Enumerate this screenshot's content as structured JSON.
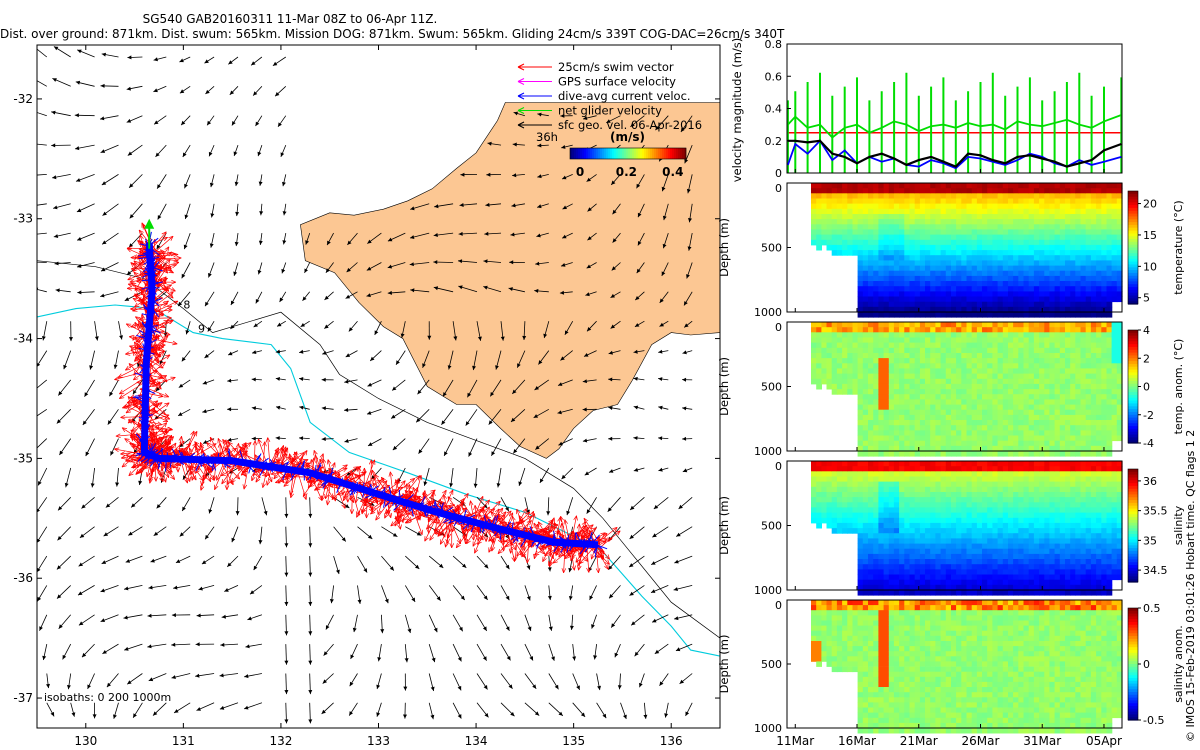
{
  "header": {
    "line1": "SG540 GAB20160311 11-Mar 08Z to 06-Apr 11Z.",
    "line2": "Dist. over ground: 871km. Dist. swum: 565km. Mission DOG: 871km. Swum: 565km. Gliding 24cm/s 339T COG-DAC=26cm/s 340T"
  },
  "credit": "© IMOS 15-Feb-2019 03:01:26 Hobart time. QC flags 1 2",
  "colors": {
    "land": "#FCC793",
    "swim": "#FF0000",
    "gps": "#FF00FF",
    "dac": "#0000FF",
    "net": "#00DD00",
    "sfc": "#000000",
    "iso200": "#00CCDD",
    "iso1000": "#000000"
  },
  "chart_data": [
    {
      "type": "map",
      "name": "glider-track-map",
      "xlim": [
        129.5,
        136.5
      ],
      "ylim": [
        -37.25,
        -31.55
      ],
      "x_ticks": [
        "130",
        "131",
        "132",
        "133",
        "134",
        "135",
        "136"
      ],
      "y_ticks": [
        "-32",
        "-33",
        "-34",
        "-35",
        "-36",
        "-37"
      ],
      "legend": {
        "items": [
          {
            "label": "25cm/s swim vector",
            "color": "#FF0000"
          },
          {
            "label": "GPS surface velocity",
            "color": "#FF00FF"
          },
          {
            "label": "dive-avg current veloc.",
            "color": "#0000FF"
          },
          {
            "label": "net glider velocity",
            "color": "#00DD00"
          },
          {
            "label": "sfc geo. vel. 06-Apr-2016",
            "color": "#000000"
          }
        ],
        "arrow_scale_label": "36h",
        "colorbar_unit": "(m/s)",
        "colorbar_ticks": [
          "0",
          "0.2",
          "0.4"
        ],
        "colorbar_range": [
          0,
          0.5
        ]
      },
      "isobath_text": "isobaths: 0   200 1000m",
      "contour_labels": [
        "8",
        "9"
      ],
      "track_waypoints": [
        [
          130.65,
          -33.2
        ],
        [
          130.68,
          -33.6
        ],
        [
          130.62,
          -34.2
        ],
        [
          130.6,
          -34.95
        ],
        [
          130.75,
          -35.0
        ],
        [
          131.5,
          -35.02
        ],
        [
          132.3,
          -35.12
        ],
        [
          133.0,
          -35.3
        ],
        [
          133.6,
          -35.45
        ],
        [
          134.2,
          -35.58
        ],
        [
          134.8,
          -35.7
        ],
        [
          135.25,
          -35.72
        ]
      ]
    },
    {
      "type": "line",
      "name": "velocity-magnitude",
      "ylabel": "velocity magnitude (m/s)",
      "ylim": [
        0,
        0.8
      ],
      "y_ticks": [
        "0",
        "0.2",
        "0.4",
        "0.6",
        "0.8"
      ],
      "x_ticks": [
        "11Mar",
        "16Mar",
        "21Mar",
        "26Mar",
        "31Mar",
        "05Apr"
      ],
      "xlim_days": [
        10.33,
        37.46
      ],
      "reference_level": 0.25,
      "series": [
        {
          "color": "#00DD00",
          "x": [
            10.4,
            11,
            12,
            13,
            14,
            15,
            16,
            17,
            18,
            19,
            20,
            21,
            22,
            23,
            24,
            25,
            26,
            27,
            28,
            29,
            30,
            31,
            32,
            33,
            34,
            35,
            36,
            37.4
          ],
          "values": [
            0.3,
            0.35,
            0.28,
            0.3,
            0.22,
            0.28,
            0.3,
            0.25,
            0.28,
            0.32,
            0.3,
            0.26,
            0.29,
            0.3,
            0.28,
            0.31,
            0.29,
            0.3,
            0.27,
            0.32,
            0.3,
            0.29,
            0.31,
            0.33,
            0.3,
            0.28,
            0.32,
            0.36
          ]
        },
        {
          "color": "#0000FF",
          "x": [
            10.4,
            11,
            12,
            13,
            14,
            15,
            16,
            17,
            18,
            19,
            20,
            21,
            22,
            23,
            24,
            25,
            26,
            27,
            28,
            29,
            30,
            31,
            32,
            33,
            34,
            35,
            36,
            37.4
          ],
          "values": [
            0.05,
            0.18,
            0.12,
            0.2,
            0.08,
            0.14,
            0.06,
            0.1,
            0.07,
            0.09,
            0.05,
            0.04,
            0.08,
            0.06,
            0.03,
            0.1,
            0.09,
            0.07,
            0.05,
            0.08,
            0.12,
            0.1,
            0.06,
            0.04,
            0.08,
            0.05,
            0.07,
            0.1
          ]
        },
        {
          "color": "#000000",
          "x": [
            10.4,
            11,
            12,
            13,
            14,
            15,
            16,
            17,
            18,
            19,
            20,
            21,
            22,
            23,
            24,
            25,
            26,
            27,
            28,
            29,
            30,
            31,
            32,
            33,
            34,
            35,
            36,
            37.4
          ],
          "values": [
            0.2,
            0.2,
            0.19,
            0.2,
            0.12,
            0.1,
            0.06,
            0.1,
            0.12,
            0.09,
            0.05,
            0.08,
            0.1,
            0.07,
            0.04,
            0.12,
            0.11,
            0.08,
            0.06,
            0.1,
            0.11,
            0.09,
            0.07,
            0.04,
            0.06,
            0.08,
            0.14,
            0.18
          ]
        }
      ]
    },
    {
      "type": "heatmap",
      "name": "temperature-section",
      "ylabel": "Depth (m)",
      "colorbar_label": "temperature (°C)",
      "y_ticks": [
        "0",
        "500",
        "1000"
      ],
      "colorbar_ticks": [
        "20",
        "15",
        "10",
        "5"
      ],
      "clim": [
        4,
        22
      ],
      "surface_value": 21.5,
      "deep_value": 5.5
    },
    {
      "type": "heatmap",
      "name": "temp-anomaly-section",
      "ylabel": "Depth (m)",
      "colorbar_label": "temp. anom. (°C)",
      "y_ticks": [
        "0",
        "500",
        "1000"
      ],
      "colorbar_ticks": [
        "4",
        "2",
        "0",
        "-2",
        "-4"
      ],
      "clim": [
        -4,
        4
      ]
    },
    {
      "type": "heatmap",
      "name": "salinity-section",
      "ylabel": "Depth (m)",
      "colorbar_label": "salinity",
      "y_ticks": [
        "0",
        "500",
        "1000"
      ],
      "colorbar_ticks": [
        "36",
        "35.5",
        "35",
        "34.5"
      ],
      "clim": [
        34.3,
        36.2
      ],
      "surface_value": 35.95,
      "deep_value": 34.45
    },
    {
      "type": "heatmap",
      "name": "salinity-anomaly-section",
      "ylabel": "Depth (m)",
      "colorbar_label": "salinity anom.",
      "y_ticks": [
        "0",
        "500",
        "1000"
      ],
      "colorbar_ticks": [
        "0.5",
        "0",
        "-0.5"
      ],
      "clim": [
        -0.5,
        0.5
      ]
    }
  ]
}
